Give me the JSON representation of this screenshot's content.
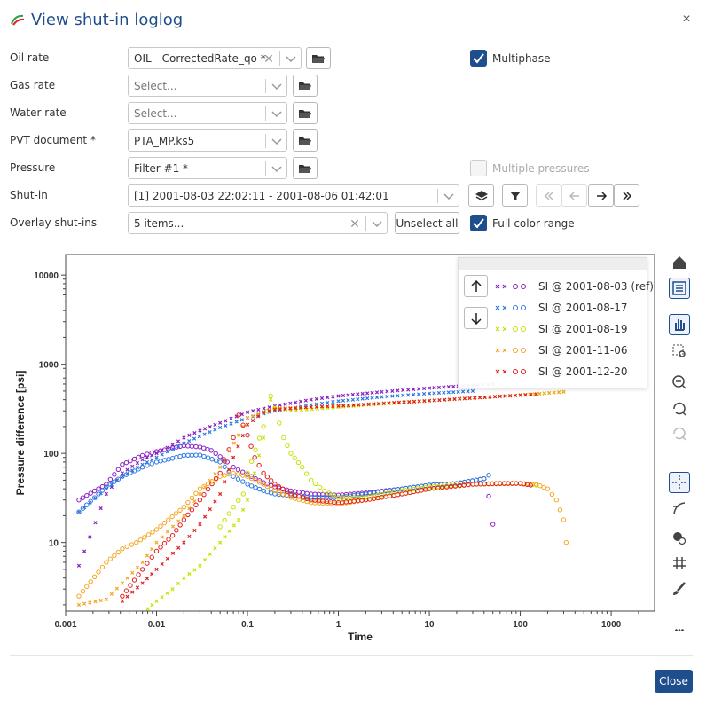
{
  "window": {
    "title": "View shut-in loglog",
    "close_symbol": "×"
  },
  "form": {
    "oil_rate": {
      "label": "Oil rate",
      "value": "OIL - CorrectedRate_qo *"
    },
    "gas_rate": {
      "label": "Gas rate",
      "placeholder": "Select..."
    },
    "water_rate": {
      "label": "Water rate",
      "placeholder": "Select..."
    },
    "pvt_document": {
      "label": "PVT document *",
      "value": "PTA_MP.ks5"
    },
    "pressure": {
      "label": "Pressure",
      "value": "Filter #1 *"
    },
    "shut_in": {
      "label": "Shut-in",
      "value": "[1] 2001-08-03 22:02:11 - 2001-08-06 01:42:01"
    },
    "overlay_shutins": {
      "label": "Overlay shut-ins",
      "value": "5 items...",
      "unselect_all_label": "Unselect all"
    },
    "multiphase": {
      "label": "Multiphase",
      "checked": true
    },
    "multiple_pressures": {
      "label": "Multiple pressures",
      "checked": false,
      "disabled": true
    },
    "full_color_range": {
      "label": "Full color range",
      "checked": true
    }
  },
  "colors": {
    "accent": "#1f4e8c"
  },
  "legend": {
    "items": [
      {
        "label": "SI @ 2001-08-03 (ref)",
        "color": "#8a1fc2"
      },
      {
        "label": "SI @ 2001-08-17",
        "color": "#2b79e0"
      },
      {
        "label": "SI @ 2001-08-19",
        "color": "#c9e000"
      },
      {
        "label": "SI @ 2001-11-06",
        "color": "#f5a623"
      },
      {
        "label": "SI @ 2001-12-20",
        "color": "#e0201e"
      }
    ]
  },
  "toolbar": {
    "icons": [
      "home-icon",
      "legend-toggle-icon",
      "pan-hand-icon",
      "zoom-box-icon",
      "zoom-out-icon",
      "reset-zoom-icon",
      "redo-zoom-icon",
      "crosshair-icon",
      "derivative-icon",
      "time-marker-icon",
      "grid-icon",
      "brush-icon",
      "more-icon"
    ],
    "more_symbol": "•••"
  },
  "chart_data": {
    "type": "scatter",
    "xscale": "log",
    "yscale": "log",
    "xlabel": "Time",
    "ylabel": "Pressure difference [psi]",
    "xlim": [
      0.001,
      3000
    ],
    "ylim": [
      1.7,
      17000
    ],
    "xticks": [
      "0.001",
      "0.01",
      "0.1",
      "1",
      "10",
      "100",
      "1000"
    ],
    "yticks": [
      "10",
      "100",
      "1000",
      "10000"
    ],
    "grid": false,
    "legend_position": "top-right",
    "markers": "x = pressure, o = derivative",
    "series": [
      {
        "name": "SI @ 2001-08-03 (ref)",
        "color": "#8a1fc2",
        "pressure": [
          [
            0.0014,
            5.5
          ],
          [
            0.0028,
            35
          ],
          [
            0.0042,
            60
          ],
          [
            0.007,
            85
          ],
          [
            0.01,
            100
          ],
          [
            0.015,
            125
          ],
          [
            0.02,
            150
          ],
          [
            0.03,
            180
          ],
          [
            0.05,
            220
          ],
          [
            0.1,
            290
          ],
          [
            0.2,
            340
          ],
          [
            0.5,
            400
          ],
          [
            1,
            440
          ],
          [
            3,
            490
          ],
          [
            10,
            540
          ],
          [
            30,
            580
          ],
          [
            50,
            600
          ]
        ],
        "derivative": [
          [
            0.0014,
            30
          ],
          [
            0.0028,
            45
          ],
          [
            0.0042,
            75
          ],
          [
            0.007,
            95
          ],
          [
            0.01,
            105
          ],
          [
            0.015,
            115
          ],
          [
            0.02,
            122
          ],
          [
            0.03,
            118
          ],
          [
            0.04,
            108
          ],
          [
            0.05,
            92
          ],
          [
            0.06,
            80
          ],
          [
            0.07,
            70
          ],
          [
            0.1,
            58
          ],
          [
            0.15,
            47
          ],
          [
            0.2,
            42
          ],
          [
            0.3,
            38
          ],
          [
            0.5,
            35
          ],
          [
            1,
            34
          ],
          [
            2,
            36
          ],
          [
            5,
            40
          ],
          [
            10,
            44
          ],
          [
            20,
            46
          ],
          [
            40,
            52
          ],
          [
            45,
            33
          ],
          [
            50,
            16
          ]
        ]
      },
      {
        "name": "SI @ 2001-08-17",
        "color": "#2b79e0",
        "pressure": [
          [
            0.0014,
            22
          ],
          [
            0.0028,
            40
          ],
          [
            0.0042,
            55
          ],
          [
            0.007,
            75
          ],
          [
            0.01,
            90
          ],
          [
            0.02,
            130
          ],
          [
            0.05,
            195
          ],
          [
            0.1,
            250
          ],
          [
            0.2,
            300
          ],
          [
            0.5,
            350
          ],
          [
            1,
            385
          ],
          [
            3,
            430
          ],
          [
            10,
            470
          ],
          [
            30,
            500
          ]
        ],
        "derivative": [
          [
            0.0014,
            22
          ],
          [
            0.0028,
            42
          ],
          [
            0.0042,
            55
          ],
          [
            0.007,
            70
          ],
          [
            0.01,
            80
          ],
          [
            0.015,
            88
          ],
          [
            0.02,
            95
          ],
          [
            0.03,
            96
          ],
          [
            0.05,
            80
          ],
          [
            0.07,
            55
          ],
          [
            0.1,
            45
          ],
          [
            0.15,
            38
          ],
          [
            0.2,
            35
          ],
          [
            0.5,
            32
          ],
          [
            1,
            32
          ],
          [
            2,
            35
          ],
          [
            5,
            40
          ],
          [
            10,
            44
          ],
          [
            20,
            46
          ],
          [
            40,
            52
          ],
          [
            45,
            57
          ]
        ]
      },
      {
        "name": "SI @ 2001-08-19",
        "color": "#c9e000",
        "pressure": [
          [
            0.008,
            1.8
          ],
          [
            0.01,
            2.2
          ],
          [
            0.015,
            3
          ],
          [
            0.02,
            4
          ],
          [
            0.03,
            5.5
          ],
          [
            0.05,
            10
          ],
          [
            0.08,
            18
          ],
          [
            0.1,
            30
          ],
          [
            0.12,
            60
          ],
          [
            0.15,
            150
          ],
          [
            0.18,
            400
          ],
          [
            0.2,
            330
          ],
          [
            0.3,
            300
          ],
          [
            1,
            330
          ],
          [
            10,
            390
          ],
          [
            100,
            450
          ],
          [
            300,
            490
          ]
        ],
        "derivative": [
          [
            0.05,
            15
          ],
          [
            0.07,
            25
          ],
          [
            0.09,
            35
          ],
          [
            0.1,
            60
          ],
          [
            0.15,
            200
          ],
          [
            0.18,
            440
          ],
          [
            0.2,
            320
          ],
          [
            0.25,
            150
          ],
          [
            0.3,
            100
          ],
          [
            0.4,
            70
          ],
          [
            0.5,
            50
          ],
          [
            0.7,
            38
          ],
          [
            1,
            32
          ],
          [
            2,
            32
          ],
          [
            5,
            38
          ],
          [
            10,
            42
          ],
          [
            30,
            45
          ],
          [
            60,
            46
          ],
          [
            100,
            46
          ],
          [
            150,
            44
          ]
        ]
      },
      {
        "name": "SI @ 2001-11-06",
        "color": "#f5a623",
        "pressure": [
          [
            0.0014,
            2
          ],
          [
            0.0028,
            2.3
          ],
          [
            0.0042,
            3.5
          ],
          [
            0.007,
            6
          ],
          [
            0.01,
            10
          ],
          [
            0.02,
            20
          ],
          [
            0.03,
            35
          ],
          [
            0.05,
            70
          ],
          [
            0.08,
            160
          ],
          [
            0.1,
            250
          ],
          [
            0.2,
            320
          ],
          [
            0.5,
            330
          ],
          [
            1,
            340
          ],
          [
            10,
            390
          ],
          [
            100,
            450
          ],
          [
            300,
            490
          ]
        ],
        "derivative": [
          [
            0.0014,
            2.5
          ],
          [
            0.0028,
            6
          ],
          [
            0.0042,
            8.5
          ],
          [
            0.006,
            10
          ],
          [
            0.01,
            14
          ],
          [
            0.02,
            25
          ],
          [
            0.03,
            40
          ],
          [
            0.05,
            55
          ],
          [
            0.07,
            60
          ],
          [
            0.1,
            55
          ],
          [
            0.15,
            45
          ],
          [
            0.2,
            38
          ],
          [
            0.3,
            32
          ],
          [
            0.5,
            28
          ],
          [
            1,
            27
          ],
          [
            2,
            30
          ],
          [
            5,
            35
          ],
          [
            10,
            40
          ],
          [
            30,
            45
          ],
          [
            100,
            46
          ],
          [
            150,
            45
          ],
          [
            200,
            40
          ],
          [
            250,
            30
          ],
          [
            300,
            18
          ],
          [
            320,
            10
          ]
        ]
      },
      {
        "name": "SI @ 2001-12-20",
        "color": "#e0201e",
        "pressure": [
          [
            0.0042,
            2.2
          ],
          [
            0.007,
            3.5
          ],
          [
            0.01,
            5
          ],
          [
            0.02,
            10
          ],
          [
            0.03,
            16
          ],
          [
            0.05,
            35
          ],
          [
            0.07,
            90
          ],
          [
            0.1,
            210
          ],
          [
            0.15,
            290
          ],
          [
            0.2,
            310
          ],
          [
            0.5,
            330
          ],
          [
            1,
            340
          ],
          [
            10,
            390
          ],
          [
            100,
            450
          ],
          [
            150,
            460
          ]
        ],
        "derivative": [
          [
            0.0042,
            2.5
          ],
          [
            0.007,
            5
          ],
          [
            0.01,
            8
          ],
          [
            0.015,
            12
          ],
          [
            0.02,
            18
          ],
          [
            0.03,
            30
          ],
          [
            0.05,
            60
          ],
          [
            0.07,
            150
          ],
          [
            0.08,
            270
          ],
          [
            0.1,
            160
          ],
          [
            0.12,
            90
          ],
          [
            0.15,
            60
          ],
          [
            0.2,
            45
          ],
          [
            0.3,
            35
          ],
          [
            0.5,
            30
          ],
          [
            1,
            28
          ],
          [
            2,
            30
          ],
          [
            5,
            35
          ],
          [
            10,
            40
          ],
          [
            30,
            45
          ],
          [
            60,
            46
          ],
          [
            100,
            46
          ],
          [
            130,
            44
          ]
        ]
      }
    ]
  }
}
